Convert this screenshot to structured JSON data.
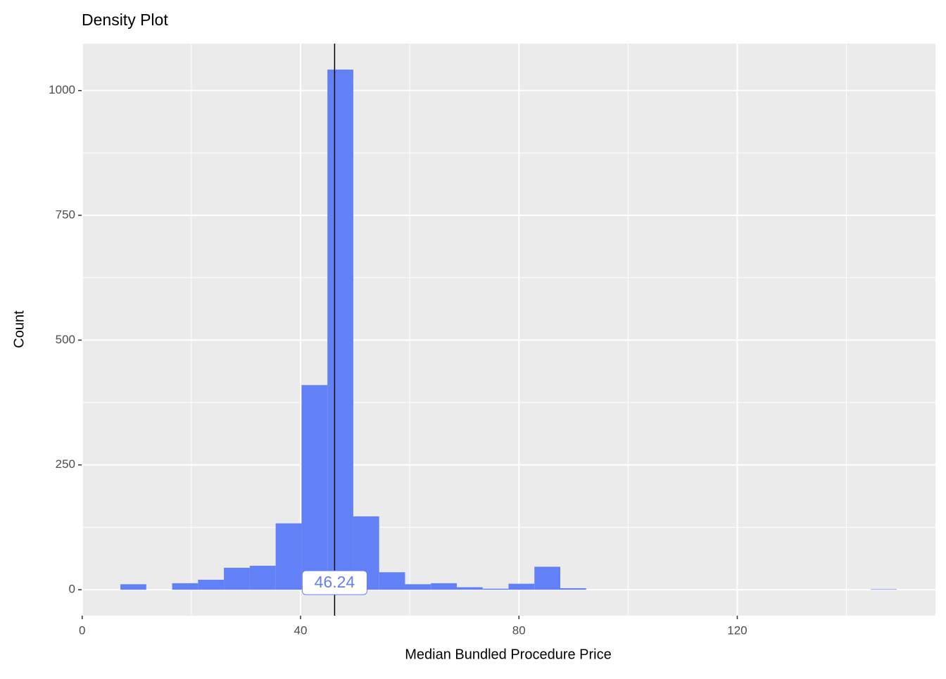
{
  "chart_data": {
    "type": "histogram",
    "title": "Density Plot",
    "x_label": "Median Bundled Procedure Price",
    "y_label": "Count",
    "bins": [
      7,
      11.74,
      16.48,
      21.22,
      25.96,
      30.7,
      35.44,
      40.18,
      44.92,
      49.66,
      54.4,
      59.14,
      63.88,
      68.62,
      73.36,
      78.1,
      82.84,
      87.58,
      92.32,
      97.06,
      101.8,
      106.54,
      111.28,
      116.02,
      120.76,
      125.5,
      130.24,
      134.98,
      139.72,
      144.46,
      149.2
    ],
    "values": [
      11,
      0,
      13,
      20,
      44,
      48,
      133,
      410,
      1042,
      147,
      35,
      11,
      13,
      5,
      2,
      12,
      46,
      3,
      0,
      0,
      0,
      0,
      0,
      0,
      0,
      0,
      0,
      0,
      0,
      1
    ],
    "color": "#6381f6",
    "vline": 46.24,
    "xlim": [
      -0.1,
      156.3
    ],
    "ylim": [
      -52,
      1094
    ],
    "xticks": [
      0,
      40,
      80,
      120
    ],
    "yticks": [
      0,
      250,
      500,
      750,
      1000
    ],
    "xminor": [
      20,
      60,
      100,
      140
    ],
    "yminor": [
      125,
      375,
      625,
      875
    ],
    "grid": true
  }
}
